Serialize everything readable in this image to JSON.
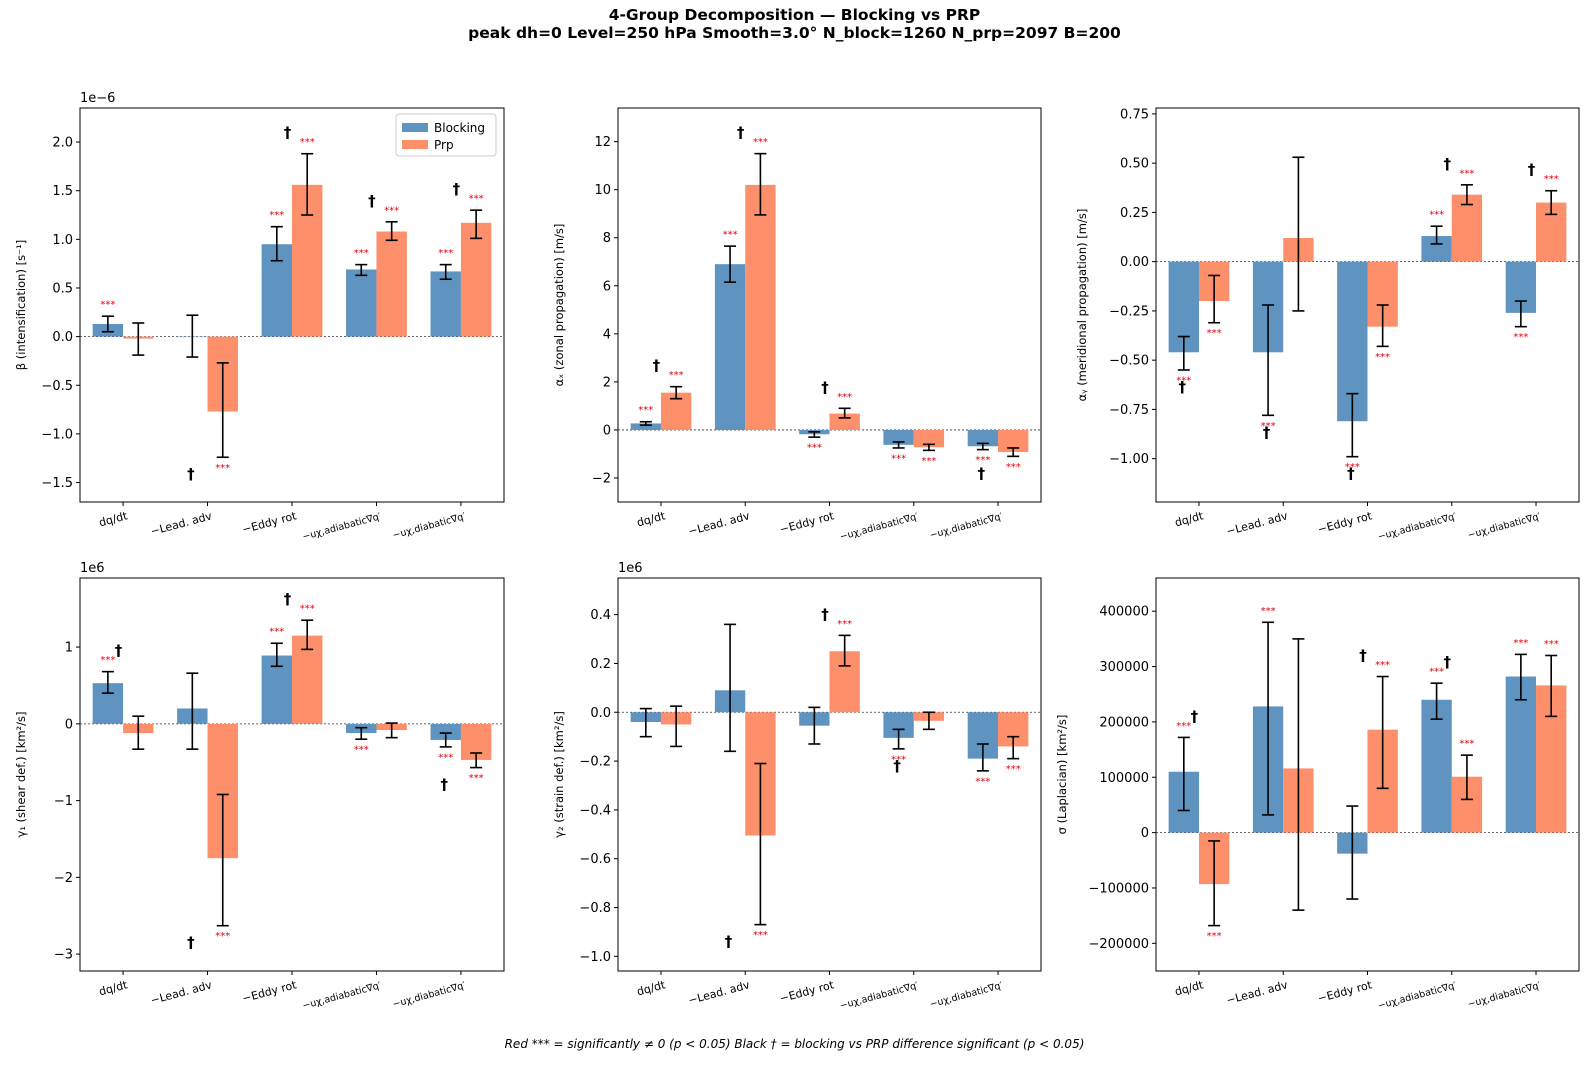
{
  "title": {
    "line1": "4-Group Decomposition — Blocking vs PRP",
    "line2": "peak dh=0  Level=250 hPa  Smooth=3.0°  N_block=1260  N_prp=2097  B=200"
  },
  "footnote": "Red *** = significantly ≠ 0  (p < 0.05)     Black † = blocking vs PRP difference significant  (p < 0.05)",
  "colors": {
    "blocking": "#5f93c0",
    "prp": "#fd8f6a",
    "star": "#e8000b",
    "dagger": "#000000"
  },
  "legend": {
    "blocking": "Blocking",
    "prp": "Prp"
  },
  "categories": [
    "dq/dt",
    "−Lead. adv",
    "−Eddy rot",
    "−uχ,adiabatic∇q′",
    "−uχ,diabatic∇q′"
  ],
  "markers": {
    "star": "***",
    "dagger": "†"
  },
  "chart_data": [
    {
      "type": "bar",
      "ylabel": "β (intensification) [s⁻¹]",
      "multiplier": "1e−6",
      "ylim": [
        -1.7,
        2.35
      ],
      "ticks": [
        -1.5,
        -1.0,
        -0.5,
        0.0,
        0.5,
        1.0,
        1.5,
        2.0
      ],
      "tick_labels": [
        "−1.5",
        "−1.0",
        "−0.5",
        "0.0",
        "0.5",
        "1.0",
        "1.5",
        "2.0"
      ],
      "legend": "top-right",
      "series": [
        {
          "name": "Blocking",
          "values": [
            0.13,
            0.0,
            0.95,
            0.69,
            0.67
          ],
          "err": [
            [
              0.05,
              0.21
            ],
            [
              -0.21,
              0.22
            ],
            [
              0.78,
              1.13
            ],
            [
              0.63,
              0.74
            ],
            [
              0.59,
              0.74
            ]
          ],
          "sig": [
            true,
            false,
            true,
            true,
            true
          ]
        },
        {
          "name": "Prp",
          "values": [
            -0.02,
            -0.77,
            1.56,
            1.08,
            1.17
          ],
          "err": [
            [
              -0.19,
              0.14
            ],
            [
              -1.24,
              -0.27
            ],
            [
              1.25,
              1.88
            ],
            [
              0.99,
              1.18
            ],
            [
              1.01,
              1.3
            ]
          ],
          "sig": [
            false,
            true,
            true,
            true,
            true
          ]
        }
      ],
      "diff_sig": [
        false,
        true,
        true,
        true,
        true
      ]
    },
    {
      "type": "bar",
      "ylabel": "αₓ (zonal propagation) [m/s]",
      "multiplier": "",
      "ylim": [
        -3.0,
        13.4
      ],
      "ticks": [
        -2,
        0,
        2,
        4,
        6,
        8,
        10,
        12
      ],
      "tick_labels": [
        "−2",
        "0",
        "2",
        "4",
        "6",
        "8",
        "10",
        "12"
      ],
      "series": [
        {
          "name": "Blocking",
          "values": [
            0.27,
            6.9,
            -0.18,
            -0.62,
            -0.68
          ],
          "err": [
            [
              0.2,
              0.34
            ],
            [
              6.15,
              7.65
            ],
            [
              -0.3,
              -0.08
            ],
            [
              -0.75,
              -0.5
            ],
            [
              -0.82,
              -0.56
            ]
          ],
          "sig": [
            true,
            true,
            true,
            true,
            true
          ]
        },
        {
          "name": "Prp",
          "values": [
            1.55,
            10.2,
            0.68,
            -0.72,
            -0.92
          ],
          "err": [
            [
              1.3,
              1.8
            ],
            [
              8.95,
              11.5
            ],
            [
              0.5,
              0.9
            ],
            [
              -0.85,
              -0.6
            ],
            [
              -1.1,
              -0.75
            ]
          ],
          "sig": [
            true,
            true,
            true,
            true,
            true
          ]
        }
      ],
      "diff_sig": [
        true,
        true,
        true,
        false,
        true
      ]
    },
    {
      "type": "bar",
      "ylabel": "αᵧ (meridional propagation) [m/s]",
      "multiplier": "",
      "ylim": [
        -1.22,
        0.78
      ],
      "ticks": [
        -1.0,
        -0.75,
        -0.5,
        -0.25,
        0.0,
        0.25,
        0.5,
        0.75
      ],
      "tick_labels": [
        "−1.00",
        "−0.75",
        "−0.50",
        "−0.25",
        "0.00",
        "0.25",
        "0.50",
        "0.75"
      ],
      "series": [
        {
          "name": "Blocking",
          "values": [
            -0.46,
            -0.46,
            -0.81,
            0.13,
            -0.26
          ],
          "err": [
            [
              -0.55,
              -0.38
            ],
            [
              -0.78,
              -0.22
            ],
            [
              -0.99,
              -0.67
            ],
            [
              0.09,
              0.18
            ],
            [
              -0.33,
              -0.2
            ]
          ],
          "sig": [
            true,
            true,
            true,
            true,
            true
          ]
        },
        {
          "name": "Prp",
          "values": [
            -0.2,
            0.12,
            -0.33,
            0.34,
            0.3
          ],
          "err": [
            [
              -0.31,
              -0.07
            ],
            [
              -0.25,
              0.53
            ],
            [
              -0.43,
              -0.22
            ],
            [
              0.29,
              0.39
            ],
            [
              0.24,
              0.36
            ]
          ],
          "sig": [
            true,
            false,
            true,
            true,
            true
          ]
        }
      ],
      "diff_sig": [
        true,
        true,
        true,
        true,
        true
      ]
    },
    {
      "type": "bar",
      "ylabel": "γ₁ (shear def.) [km²/s]",
      "multiplier": "1e6",
      "ylim": [
        -3.22,
        1.9
      ],
      "ticks": [
        -3,
        -2,
        -1,
        0,
        1
      ],
      "tick_labels": [
        "−3",
        "−2",
        "−1",
        "0",
        "1"
      ],
      "series": [
        {
          "name": "Blocking",
          "values": [
            0.53,
            0.2,
            0.89,
            -0.12,
            -0.21
          ],
          "err": [
            [
              0.4,
              0.68
            ],
            [
              -0.33,
              0.66
            ],
            [
              0.75,
              1.05
            ],
            [
              -0.2,
              -0.05
            ],
            [
              -0.3,
              -0.12
            ]
          ],
          "sig": [
            true,
            false,
            true,
            true,
            true
          ]
        },
        {
          "name": "Prp",
          "values": [
            -0.12,
            -1.75,
            1.15,
            -0.08,
            -0.47
          ],
          "err": [
            [
              -0.33,
              0.1
            ],
            [
              -2.63,
              -0.92
            ],
            [
              0.97,
              1.35
            ],
            [
              -0.18,
              0.01
            ],
            [
              -0.57,
              -0.38
            ]
          ],
          "sig": [
            false,
            true,
            true,
            false,
            true
          ]
        }
      ],
      "diff_sig": [
        true,
        true,
        true,
        false,
        true
      ]
    },
    {
      "type": "bar",
      "ylabel": "γ₂ (strain def.) [km²/s]",
      "multiplier": "1e6",
      "ylim": [
        -1.06,
        0.55
      ],
      "ticks": [
        -1.0,
        -0.8,
        -0.6,
        -0.4,
        -0.2,
        0.0,
        0.2,
        0.4
      ],
      "tick_labels": [
        "−1.0",
        "−0.8",
        "−0.6",
        "−0.4",
        "−0.2",
        "0.0",
        "0.2",
        "0.4"
      ],
      "series": [
        {
          "name": "Blocking",
          "values": [
            -0.04,
            0.09,
            -0.055,
            -0.105,
            -0.19
          ],
          "err": [
            [
              -0.1,
              0.015
            ],
            [
              -0.16,
              0.36
            ],
            [
              -0.13,
              0.02
            ],
            [
              -0.15,
              -0.07
            ],
            [
              -0.24,
              -0.13
            ]
          ],
          "sig": [
            false,
            false,
            false,
            true,
            true
          ]
        },
        {
          "name": "Prp",
          "values": [
            -0.05,
            -0.505,
            0.25,
            -0.035,
            -0.14
          ],
          "err": [
            [
              -0.14,
              0.025
            ],
            [
              -0.87,
              -0.21
            ],
            [
              0.19,
              0.315
            ],
            [
              -0.07,
              0.0
            ],
            [
              -0.19,
              -0.1
            ]
          ],
          "sig": [
            false,
            true,
            true,
            false,
            true
          ]
        }
      ],
      "diff_sig": [
        false,
        true,
        true,
        true,
        false
      ]
    },
    {
      "type": "bar",
      "ylabel": "σ (Laplacian) [km²/s]",
      "multiplier": "",
      "ylim": [
        -250000,
        460000
      ],
      "ticks": [
        -200000,
        -100000,
        0,
        100000,
        200000,
        300000,
        400000
      ],
      "tick_labels": [
        "−200000",
        "−100000",
        "0",
        "100000",
        "200000",
        "300000",
        "400000"
      ],
      "series": [
        {
          "name": "Blocking",
          "values": [
            110000,
            228000,
            -38000,
            240000,
            282000
          ],
          "err": [
            [
              40000,
              172000
            ],
            [
              32000,
              380000
            ],
            [
              -120000,
              48000
            ],
            [
              205000,
              270000
            ],
            [
              240000,
              322000
            ]
          ],
          "sig": [
            true,
            true,
            false,
            true,
            true
          ]
        },
        {
          "name": "Prp",
          "values": [
            -93000,
            116000,
            186000,
            101000,
            266000
          ],
          "err": [
            [
              -168000,
              -15000
            ],
            [
              -140000,
              350000
            ],
            [
              80000,
              282000
            ],
            [
              60000,
              140000
            ],
            [
              210000,
              320000
            ]
          ],
          "sig": [
            true,
            false,
            true,
            true,
            true
          ]
        }
      ],
      "diff_sig": [
        true,
        false,
        true,
        true,
        false
      ]
    }
  ]
}
